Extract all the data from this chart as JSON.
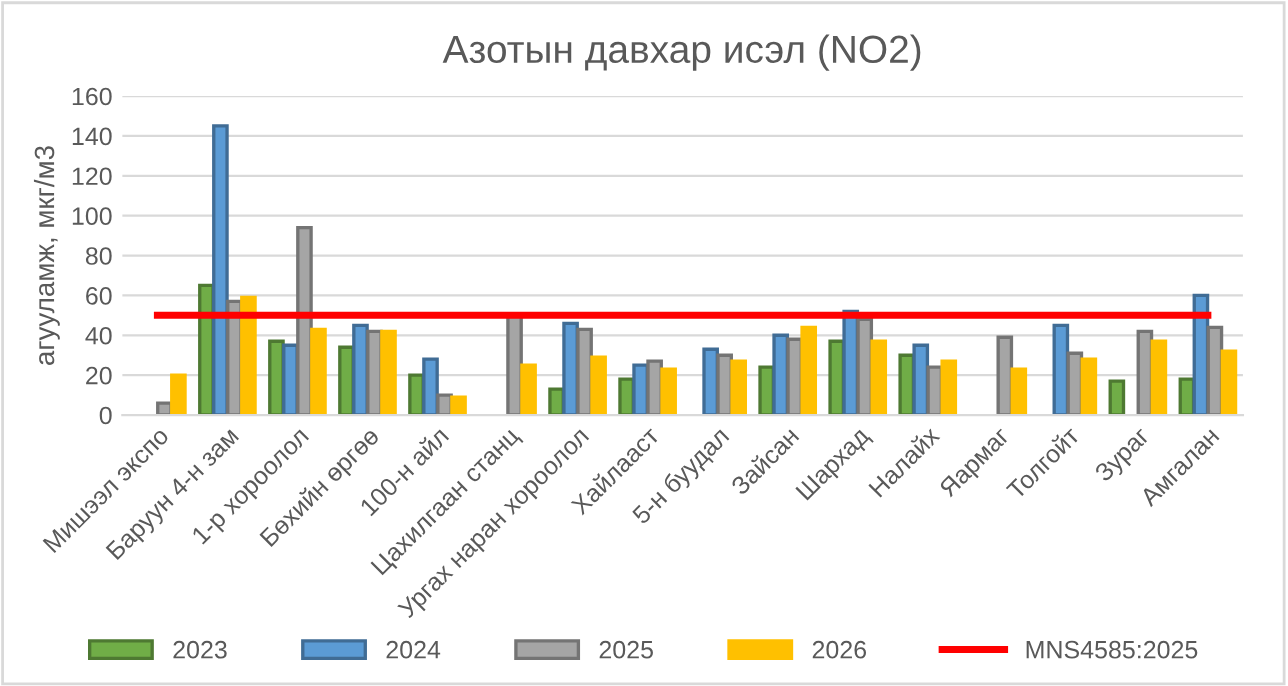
{
  "chart_data": {
    "type": "bar",
    "title": "Азотын давхар исэл (NO2)",
    "ylabel": "агууламж, мкг/м3",
    "categories": [
      "Мишээл экспо",
      "Баруун 4-н зам",
      "1-р хороолол",
      "Бөхийн өргөө",
      "100-н айл",
      "Цахилгаан станц",
      "Ургах наран хороолол",
      "Хайлааст",
      "5-н буудал",
      "Зайсан",
      "Шархад",
      "Налайх",
      "Яармаг",
      "Толгойт",
      "Зураг",
      "Амгалан"
    ],
    "series": [
      {
        "name": "2023",
        "color": "#70ad47",
        "values": [
          null,
          65,
          37,
          34,
          20,
          null,
          13,
          18,
          null,
          24,
          37,
          30,
          null,
          null,
          17,
          18
        ]
      },
      {
        "name": "2024",
        "color": "#5b9bd5",
        "values": [
          null,
          145,
          35,
          45,
          28,
          null,
          46,
          25,
          33,
          40,
          52,
          35,
          null,
          45,
          null,
          60
        ]
      },
      {
        "name": "2025",
        "color": "#a5a5a5",
        "values": [
          6,
          57,
          94,
          42,
          10,
          50,
          43,
          27,
          30,
          38,
          48,
          24,
          39,
          31,
          42,
          44
        ]
      },
      {
        "name": "2026",
        "color": "#ffc000",
        "values": [
          20,
          59,
          43,
          42,
          9,
          25,
          29,
          23,
          27,
          44,
          37,
          27,
          23,
          28,
          37,
          32
        ]
      },
      {
        "name": "MNS4585:2025",
        "type": "line",
        "color": "#ff0000",
        "values": [
          50,
          50,
          50,
          50,
          50,
          50,
          50,
          50,
          50,
          50,
          50,
          50,
          50,
          50,
          50,
          50
        ]
      }
    ],
    "ylim": [
      0,
      160
    ],
    "yticks": [
      0,
      20,
      40,
      60,
      80,
      100,
      120,
      140,
      160
    ],
    "grid": "y",
    "legend": "bottom"
  }
}
